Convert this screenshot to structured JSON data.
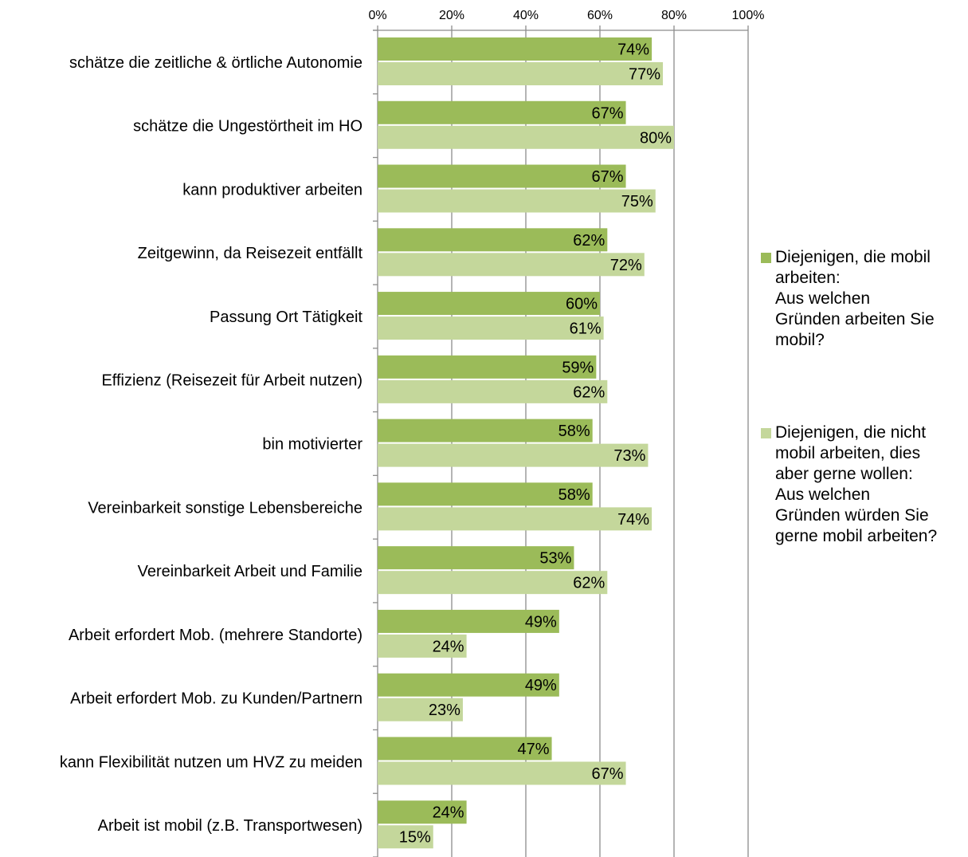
{
  "chart_data": {
    "type": "bar",
    "orientation": "horizontal",
    "categories": [
      "schätze die zeitliche & örtliche Autonomie",
      "schätze die Ungestörtheit im HO",
      "kann produktiver arbeiten",
      "Zeitgewinn, da Reisezeit entfällt",
      "Passung Ort Tätigkeit",
      "Effizienz (Reisezeit für Arbeit nutzen)",
      "bin motivierter",
      "Vereinbarkeit sonstige Lebensbereiche",
      "Vereinbarkeit Arbeit und Familie",
      "Arbeit erfordert Mob. (mehrere Standorte)",
      "Arbeit erfordert Mob. zu Kunden/Partnern",
      "kann Flexibilität nutzen um HVZ zu meiden",
      "Arbeit ist mobil (z.B. Transportwesen)"
    ],
    "series": [
      {
        "name": "Diejenigen, die mobil arbeiten: Aus welchen Gründen arbeiten Sie mobil?",
        "values": [
          74,
          67,
          67,
          62,
          60,
          59,
          58,
          58,
          53,
          49,
          49,
          47,
          24
        ],
        "labels": [
          "74%",
          "67%",
          "67%",
          "62%",
          "60%",
          "59%",
          "58%",
          "58%",
          "53%",
          "49%",
          "49%",
          "47%",
          "24%"
        ],
        "color": "#9BBB59"
      },
      {
        "name": "Diejenigen, die nicht mobil arbeiten, dies aber gerne wollen: Aus welchen Gründen würden Sie gerne mobil arbeiten?",
        "values": [
          77,
          80,
          75,
          72,
          61,
          62,
          73,
          74,
          62,
          24,
          23,
          67,
          15
        ],
        "labels": [
          "77%",
          "80%",
          "75%",
          "72%",
          "61%",
          "62%",
          "73%",
          "74%",
          "62%",
          "24%",
          "23%",
          "67%",
          "15%"
        ],
        "color": "#C4D79B"
      }
    ],
    "x_ticks": [
      "0%",
      "20%",
      "40%",
      "60%",
      "80%",
      "100%"
    ],
    "xlim": [
      0,
      100
    ],
    "grid": true,
    "legend_position": "right"
  },
  "legend": {
    "items": [
      {
        "text": "Diejenigen, die mobil\narbeiten:\nAus welchen\nGründen arbeiten Sie\nmobil?",
        "color": "#9BBB59"
      },
      {
        "text": "Diejenigen, die nicht\nmobil arbeiten, dies\naber gerne wollen:\nAus welchen\nGründen würden Sie\ngerne mobil arbeiten?",
        "color": "#C4D79B"
      }
    ]
  }
}
